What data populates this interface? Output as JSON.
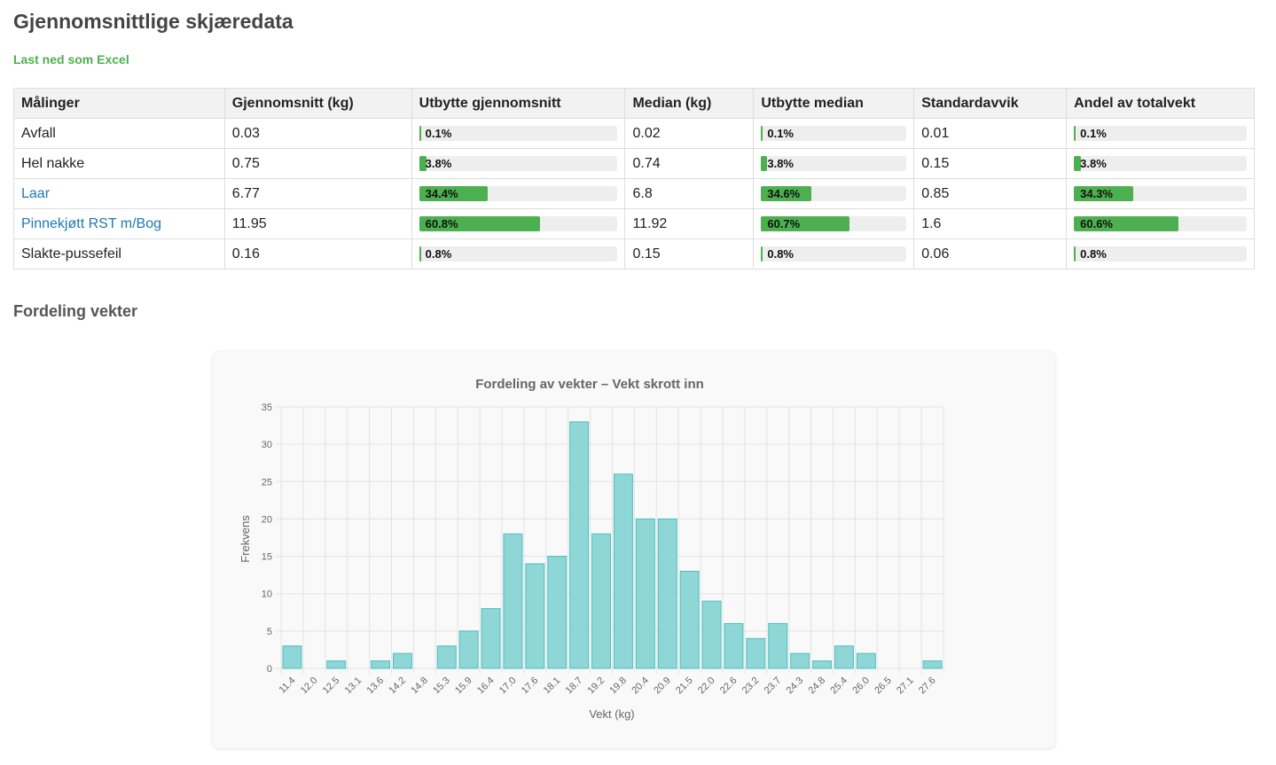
{
  "header": {
    "title": "Gjennomsnittlige skjæredata",
    "download": "Last ned som Excel"
  },
  "table": {
    "columns": [
      "Målinger",
      "Gjennomsnitt (kg)",
      "Utbytte gjennomsnitt",
      "Median (kg)",
      "Utbytte median",
      "Standardavvik",
      "Andel av totalvekt"
    ],
    "link_rows": [
      2,
      3
    ],
    "bar_color": "#4caf50",
    "rows": [
      [
        "Avfall",
        0.03,
        {
          "value": 0.1,
          "label": "0.1%"
        },
        0.02,
        {
          "value": 0.1,
          "label": "0.1%"
        },
        0.01,
        {
          "value": 0.1,
          "label": "0.1%"
        }
      ],
      [
        "Hel nakke",
        0.75,
        {
          "value": 3.8,
          "label": "3.8%"
        },
        0.74,
        {
          "value": 3.8,
          "label": "3.8%"
        },
        0.15,
        {
          "value": 3.8,
          "label": "3.8%"
        }
      ],
      [
        "Laar",
        6.77,
        {
          "value": 34.4,
          "label": "34.4%"
        },
        6.8,
        {
          "value": 34.6,
          "label": "34.6%"
        },
        0.85,
        {
          "value": 34.3,
          "label": "34.3%"
        }
      ],
      [
        "Pinnekjøtt RST m/Bog",
        11.95,
        {
          "value": 60.8,
          "label": "60.8%"
        },
        11.92,
        {
          "value": 60.7,
          "label": "60.7%"
        },
        1.6,
        {
          "value": 60.6,
          "label": "60.6%"
        }
      ],
      [
        "Slakte-pussefeil",
        0.16,
        {
          "value": 0.8,
          "label": "0.8%"
        },
        0.15,
        {
          "value": 0.8,
          "label": "0.8%"
        },
        0.06,
        {
          "value": 0.8,
          "label": "0.8%"
        }
      ]
    ]
  },
  "section_title": "Fordeling vekter",
  "chart_data": {
    "type": "bar",
    "title": "Fordeling av vekter – Vekt skrott inn",
    "x_label": "Vekt (kg)",
    "y_label": "Frekvens",
    "categories": [
      "11.4",
      "12.0",
      "12.5",
      "13.1",
      "13.6",
      "14.2",
      "14.8",
      "15.3",
      "15.9",
      "16.4",
      "17.0",
      "17.6",
      "18.1",
      "18.7",
      "19.2",
      "19.8",
      "20.4",
      "20.9",
      "21.5",
      "22.0",
      "22.6",
      "23.2",
      "23.7",
      "24.3",
      "24.8",
      "25.4",
      "26.0",
      "26.5",
      "27.1",
      "27.6"
    ],
    "values": [
      3,
      0,
      1,
      0,
      1,
      2,
      0,
      3,
      5,
      8,
      18,
      14,
      15,
      33,
      18,
      26,
      20,
      20,
      13,
      9,
      6,
      4,
      6,
      2,
      1,
      3,
      2,
      0,
      0,
      1
    ],
    "color": "#8fd6d6",
    "border_color": "#4bc0c0",
    "ylim": [
      0,
      35
    ],
    "yticks": [
      0,
      5,
      10,
      15,
      20,
      25,
      30,
      35
    ],
    "grid": true
  }
}
